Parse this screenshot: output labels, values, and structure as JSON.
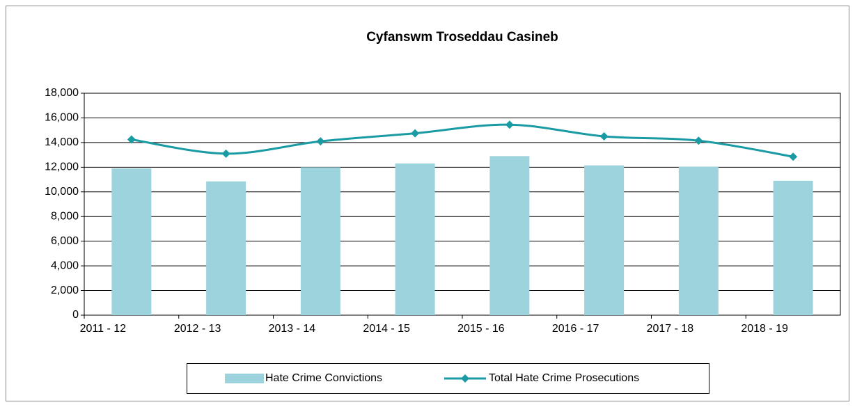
{
  "chart_data": {
    "type": "bar_line",
    "title": "Cyfanswm Troseddau Casineb",
    "categories": [
      "2011 - 12",
      "2012 - 13",
      "2013 - 14",
      "2014 - 15",
      "2015 - 16",
      "2016 - 17",
      "2017 - 18",
      "2018 - 19"
    ],
    "series": [
      {
        "name": "Hate Crime Convictions",
        "type": "bar",
        "color": "#9dd3dc",
        "values": [
          11900,
          10850,
          12000,
          12300,
          12900,
          12150,
          12050,
          10900
        ]
      },
      {
        "name": "Total Hate Crime Prosecutions",
        "type": "line",
        "color": "#1a9ba3",
        "values": [
          14250,
          13100,
          14100,
          14750,
          15450,
          14500,
          14150,
          12850
        ]
      }
    ],
    "ylim": [
      0,
      18000
    ],
    "yticks": [
      0,
      {
        "value": 2000,
        "label": "2,000"
      },
      {
        "value": 4000,
        "label": "4,000"
      },
      {
        "value": 6000,
        "label": "6,000"
      },
      {
        "value": 8000,
        "label": "8,000"
      },
      {
        "value": 10000,
        "label": "10,000"
      },
      {
        "value": 12000,
        "label": "12,000"
      },
      {
        "value": 14000,
        "label": "14,000"
      },
      {
        "value": 16000,
        "label": "16,000"
      },
      {
        "value": 18000,
        "label": "18,000"
      }
    ],
    "grid": true,
    "legend": "bottom"
  }
}
